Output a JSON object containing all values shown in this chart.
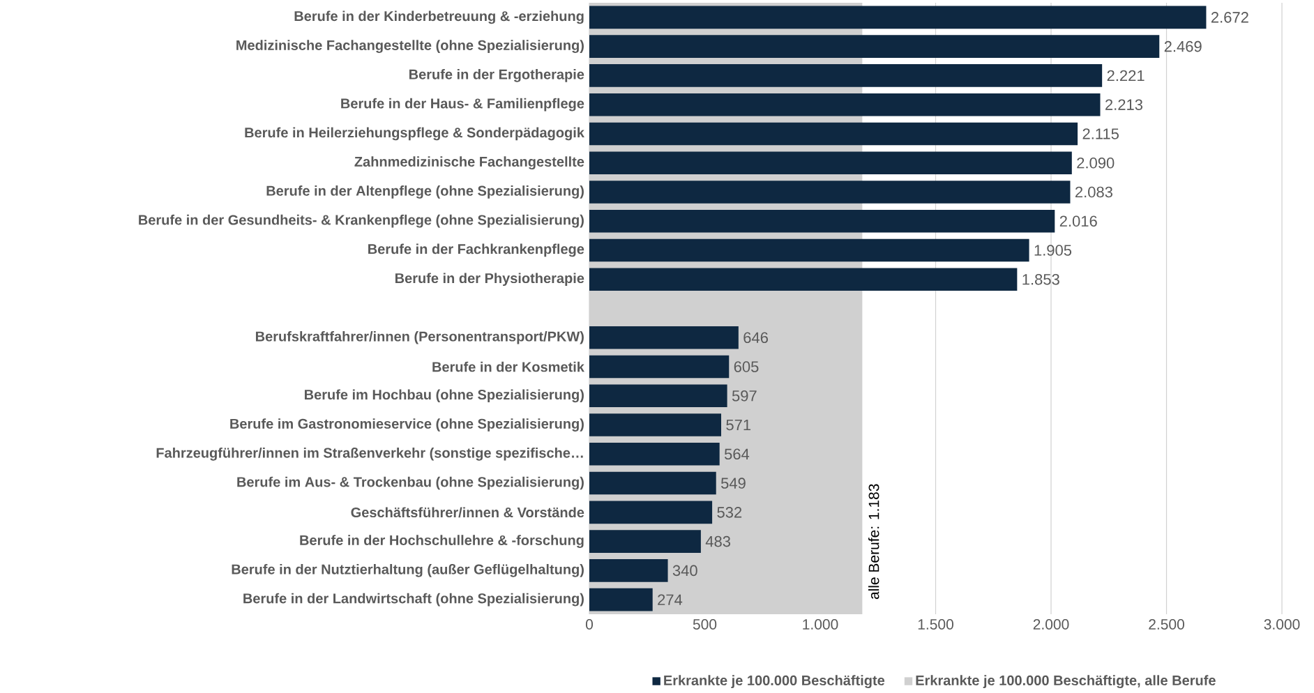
{
  "chart_data": {
    "type": "bar",
    "orientation": "horizontal",
    "categories": [
      "Berufe in der Kinderbetreuung & -erziehung",
      "Medizinische Fachangestellte (ohne Spezialisierung)",
      "Berufe in der Ergotherapie",
      "Berufe in der Haus- & Familienpflege",
      "Berufe in Heilerziehungspflege & Sonderpädagogik",
      "Zahnmedizinische Fachangestellte",
      "Berufe in der Altenpflege (ohne Spezialisierung)",
      "Berufe in der Gesundheits- & Krankenpflege (ohne Spezialisierung)",
      "Berufe in der Fachkrankenpflege",
      "Berufe in der Physiotherapie",
      null,
      "Berufskraftfahrer/innen (Personentransport/PKW)",
      "Berufe in der Kosmetik",
      "Berufe im Hochbau (ohne Spezialisierung)",
      "Berufe im Gastronomieservice (ohne Spezialisierung)",
      "Fahrzeugführer/innen im Straßenverkehr (sonstige spezifische…",
      "Berufe im Aus- & Trockenbau (ohne Spezialisierung)",
      "Geschäftsführer/innen & Vorstände",
      "Berufe in der Hochschullehre & -forschung",
      "Berufe in der Nutztierhaltung (außer Geflügelhaltung)",
      "Berufe in der Landwirtschaft (ohne Spezialisierung)"
    ],
    "series": [
      {
        "name": "Erkrankte je 100.000 Beschäftigte",
        "color": "#0e2841",
        "values": [
          2672,
          2469,
          2221,
          2213,
          2115,
          2090,
          2083,
          2016,
          1905,
          1853,
          null,
          646,
          605,
          597,
          571,
          564,
          549,
          532,
          483,
          340,
          274
        ],
        "value_labels": [
          "2.672",
          "2.469",
          "2.221",
          "2.213",
          "2.115",
          "2.090",
          "2.083",
          "2.016",
          "1.905",
          "1.853",
          null,
          "646",
          "605",
          "597",
          "571",
          "564",
          "549",
          "532",
          "483",
          "340",
          "274"
        ]
      }
    ],
    "bands": [
      {
        "axis": "x",
        "from": 0,
        "to": 1183,
        "label": "Erkrankte je 100.000 Beschäftigte, alle Berufe",
        "color": "#d0d0d0"
      }
    ],
    "xlim": [
      0,
      3000
    ],
    "xticks": [
      0,
      500,
      {
        "value": 1000,
        "label": "1.000"
      },
      {
        "value": 1500,
        "label": "1.500"
      },
      {
        "value": 2000,
        "label": "2.000"
      },
      {
        "value": 2500,
        "label": "2.500"
      },
      {
        "value": 3000,
        "label": "3.000"
      }
    ],
    "grid": "x",
    "legend": "bottom",
    "annotations": [
      {
        "text": "alle Berufe: 1.183",
        "x": 1183
      }
    ]
  }
}
